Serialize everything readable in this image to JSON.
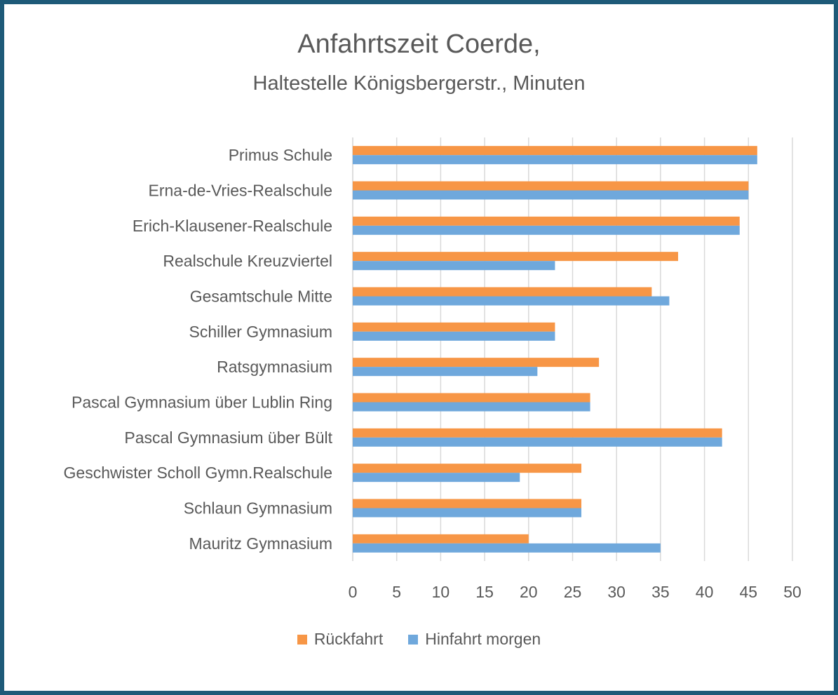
{
  "chart_data": {
    "type": "bar",
    "orientation": "horizontal",
    "title": "Anfahrtszeit Coerde,",
    "subtitle": "Haltestelle Königsbergerstr., Minuten",
    "categories": [
      "Primus Schule",
      "Erna-de-Vries-Realschule",
      "Erich-Klausener-Realschule",
      "Realschule Kreuzviertel",
      "Gesamtschule Mitte",
      "Schiller Gymnasium",
      "Ratsgymnasium",
      "Pascal Gymnasium über Lublin Ring",
      "Pascal Gymnasium über Bült",
      "Geschwister Scholl Gymn.Realschule",
      "Schlaun Gymnasium",
      "Mauritz Gymnasium"
    ],
    "series": [
      {
        "name": "Rückfahrt",
        "color": "#f79646",
        "values": [
          46,
          45,
          44,
          37,
          34,
          23,
          28,
          27,
          42,
          26,
          26,
          20
        ]
      },
      {
        "name": "Hinfahrt morgen",
        "color": "#6fa8dc",
        "values": [
          46,
          45,
          44,
          23,
          36,
          23,
          21,
          27,
          42,
          19,
          26,
          35
        ]
      }
    ],
    "xlim": [
      0,
      50
    ],
    "xticks": [
      0,
      5,
      10,
      15,
      20,
      25,
      30,
      35,
      40,
      45,
      50
    ],
    "grid": true,
    "legend_position": "bottom",
    "colors": {
      "frame": "#1e5a78",
      "grid": "#d9d9d9",
      "text": "#595959"
    }
  }
}
